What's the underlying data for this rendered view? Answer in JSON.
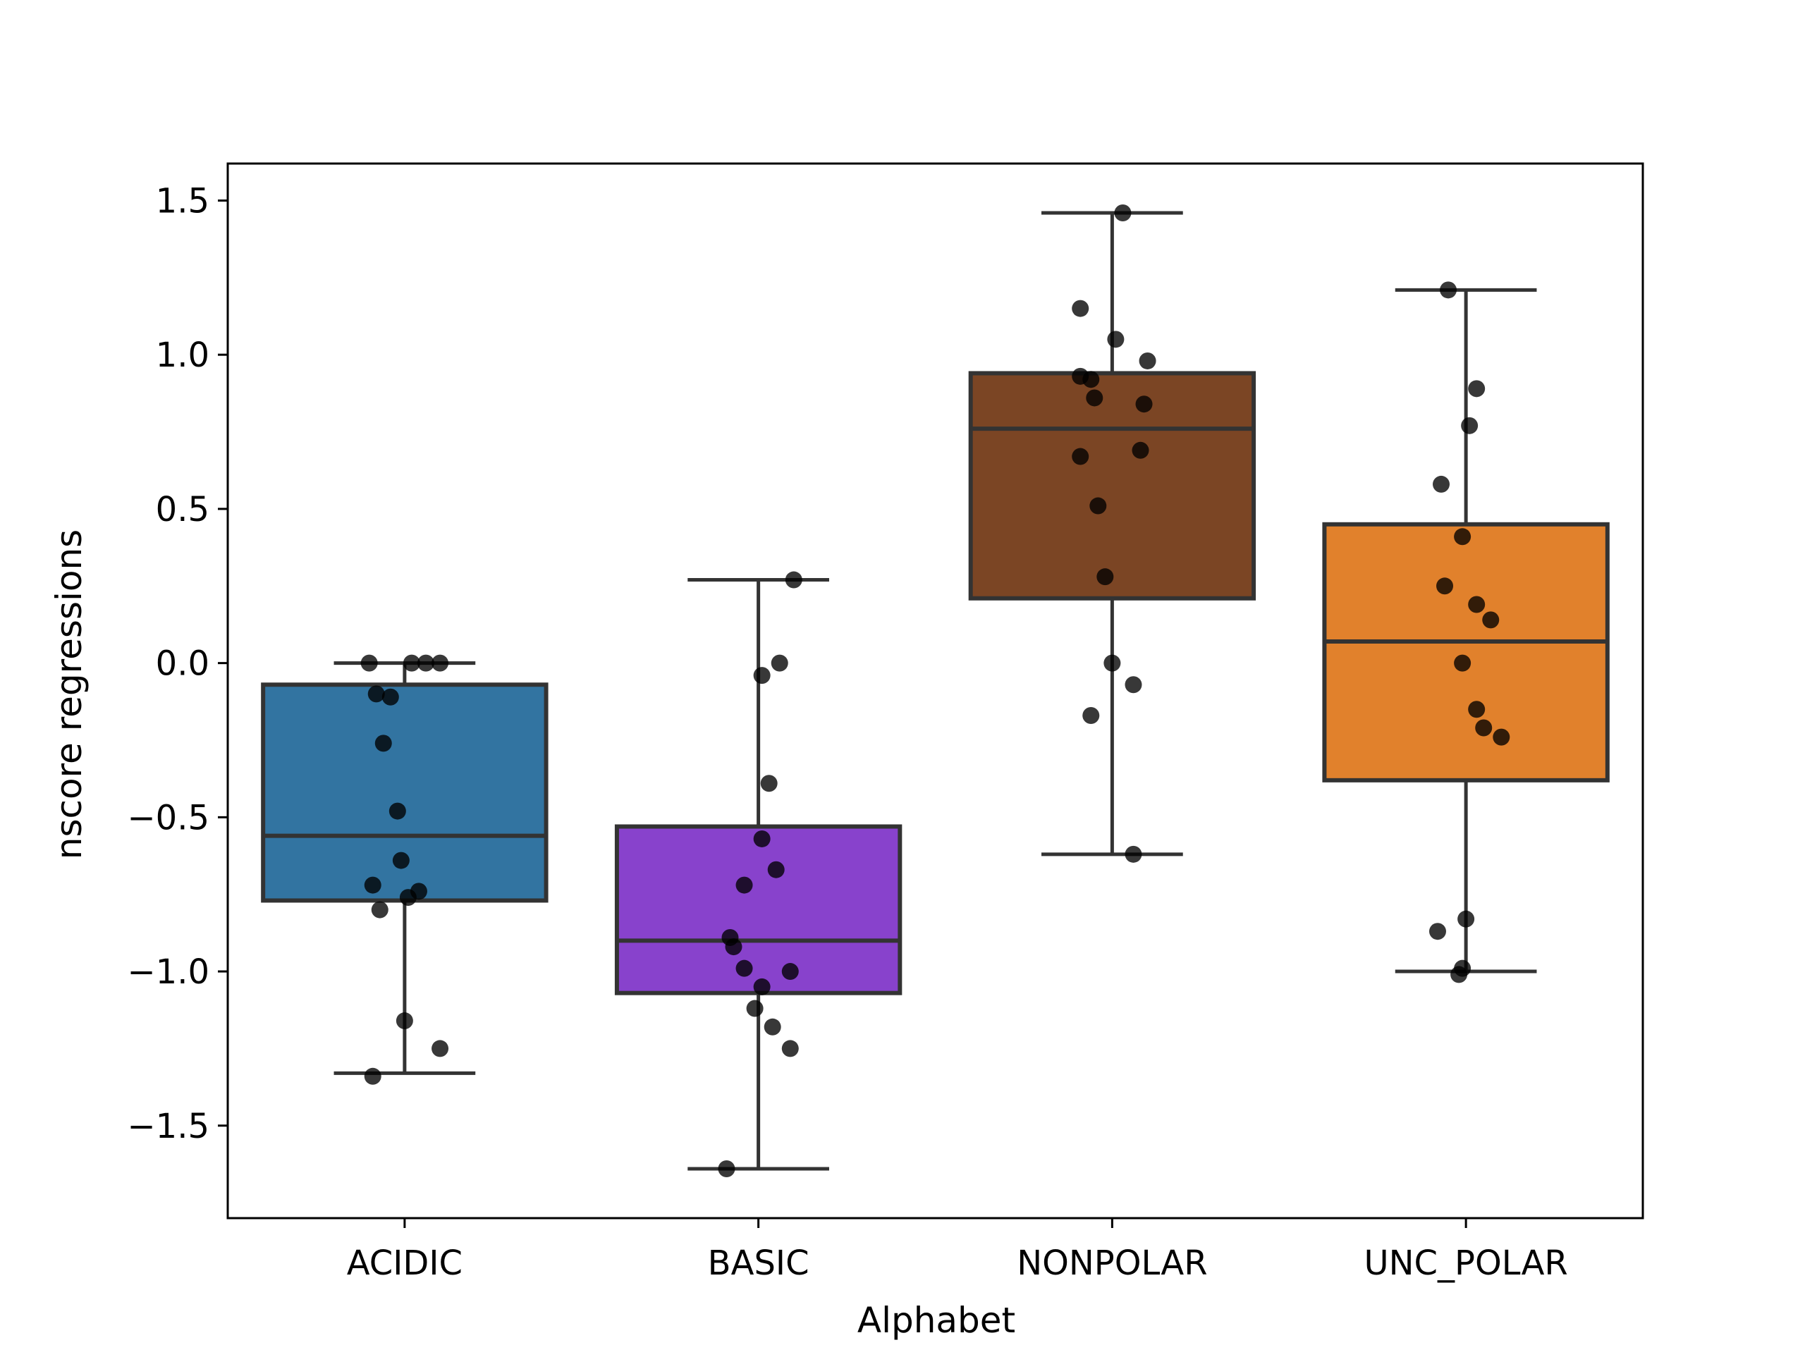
{
  "chart_data": {
    "type": "box",
    "title": "",
    "xlabel": "Alphabet",
    "ylabel": "nscore regressions",
    "ylim": [
      -1.8,
      1.62
    ],
    "yticks": [
      1.5,
      1.0,
      0.5,
      0.0,
      -0.5,
      -1.0,
      -1.5
    ],
    "ytick_labels": [
      "1.5",
      "1.0",
      "0.5",
      "0.0",
      "−0.5",
      "−1.0",
      "−1.5"
    ],
    "categories": [
      "ACIDIC",
      "BASIC",
      "NONPOLAR",
      "UNC_POLAR"
    ],
    "grid": false,
    "boxes": [
      {
        "category": "ACIDIC",
        "color": "#3274a1",
        "q1": -0.77,
        "median": -0.56,
        "q3": -0.07,
        "whisker_low": -1.33,
        "whisker_high": 0.0,
        "points": [
          [
            -0.1,
            0.0
          ],
          [
            0.02,
            0.0
          ],
          [
            0.06,
            0.0
          ],
          [
            0.1,
            0.0
          ],
          [
            -0.08,
            -0.1
          ],
          [
            -0.04,
            -0.11
          ],
          [
            -0.06,
            -0.26
          ],
          [
            -0.02,
            -0.48
          ],
          [
            -0.01,
            -0.64
          ],
          [
            -0.09,
            -0.72
          ],
          [
            0.04,
            -0.74
          ],
          [
            0.01,
            -0.76
          ],
          [
            -0.07,
            -0.8
          ],
          [
            0.0,
            -1.16
          ],
          [
            0.1,
            -1.25
          ],
          [
            -0.09,
            -1.34
          ]
        ]
      },
      {
        "category": "BASIC",
        "color": "#8842cc",
        "q1": -1.07,
        "median": -0.9,
        "q3": -0.53,
        "whisker_low": -1.64,
        "whisker_high": 0.27,
        "points": [
          [
            0.1,
            0.27
          ],
          [
            0.06,
            0.0
          ],
          [
            0.01,
            -0.04
          ],
          [
            0.03,
            -0.39
          ],
          [
            0.01,
            -0.57
          ],
          [
            0.05,
            -0.67
          ],
          [
            -0.04,
            -0.72
          ],
          [
            -0.08,
            -0.89
          ],
          [
            -0.07,
            -0.92
          ],
          [
            -0.04,
            -0.99
          ],
          [
            0.09,
            -1.0
          ],
          [
            0.01,
            -1.05
          ],
          [
            -0.01,
            -1.12
          ],
          [
            0.04,
            -1.18
          ],
          [
            0.09,
            -1.25
          ],
          [
            -0.09,
            -1.64
          ]
        ]
      },
      {
        "category": "NONPOLAR",
        "color": "#7b4524",
        "q1": 0.21,
        "median": 0.76,
        "q3": 0.94,
        "whisker_low": -0.62,
        "whisker_high": 1.46,
        "points": [
          [
            0.03,
            1.46
          ],
          [
            -0.09,
            1.15
          ],
          [
            0.01,
            1.05
          ],
          [
            0.1,
            0.98
          ],
          [
            -0.09,
            0.93
          ],
          [
            -0.06,
            0.92
          ],
          [
            -0.05,
            0.86
          ],
          [
            0.09,
            0.84
          ],
          [
            0.08,
            0.69
          ],
          [
            -0.09,
            0.67
          ],
          [
            -0.04,
            0.51
          ],
          [
            -0.02,
            0.28
          ],
          [
            0.0,
            0.0
          ],
          [
            0.06,
            -0.07
          ],
          [
            -0.06,
            -0.17
          ],
          [
            0.06,
            -0.62
          ]
        ]
      },
      {
        "category": "UNC_POLAR",
        "color": "#e1812c",
        "q1": -0.38,
        "median": 0.07,
        "q3": 0.45,
        "whisker_low": -1.0,
        "whisker_high": 1.21,
        "points": [
          [
            -0.05,
            1.21
          ],
          [
            0.03,
            0.89
          ],
          [
            0.01,
            0.77
          ],
          [
            -0.07,
            0.58
          ],
          [
            -0.01,
            0.41
          ],
          [
            -0.06,
            0.25
          ],
          [
            0.03,
            0.19
          ],
          [
            0.07,
            0.14
          ],
          [
            -0.01,
            0.0
          ],
          [
            0.03,
            -0.15
          ],
          [
            0.05,
            -0.21
          ],
          [
            0.1,
            -0.24
          ],
          [
            0.0,
            -0.83
          ],
          [
            -0.08,
            -0.87
          ],
          [
            -0.01,
            -0.99
          ],
          [
            -0.02,
            -1.01
          ]
        ]
      }
    ]
  }
}
